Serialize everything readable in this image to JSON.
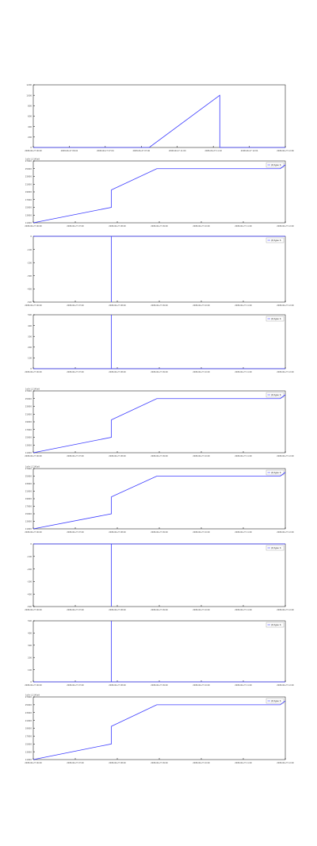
{
  "colors": {
    "series": "#3b3bff",
    "axis": "#000000",
    "tick": "#444444",
    "background": "#ffffff"
  },
  "chart_data": [
    {
      "type": "line",
      "title": "",
      "xlabel": "",
      "ylabel": "",
      "legend": "",
      "x_ticks": [
        "2008-06-27 06:00",
        "2008-06-27 06:02",
        "2008-06-27 07:04",
        "2008-06-27 07:06",
        "2008-06-27 11:00",
        "2008-06-27 11:02",
        "2008-06-27 12:04",
        "2008-06-27 12:06"
      ],
      "y_ticks": [
        "1200",
        "1000",
        "800",
        "600",
        "400",
        "200",
        "0"
      ],
      "ylim": [
        0,
        1200
      ],
      "series": [
        {
          "x": [
            0.0,
            0.46,
            0.74,
            0.74,
            1.0
          ],
          "y": [
            0,
            0,
            1000,
            0,
            0
          ]
        }
      ]
    },
    {
      "type": "line",
      "title": "",
      "xlabel": "",
      "ylabel": "",
      "legend": "(0) type: 6",
      "offset_label": "1e9+1.2145e9",
      "x_ticks": [
        "2008-06-27 06:00",
        "2008-06-27 07:00",
        "2008-06-27 08:00",
        "2008-06-27 09:00",
        "2008-06-27 10:00",
        "2008-06-27 11:00",
        "2008-06-27 12:00"
      ],
      "y_ticks": [
        "27000",
        "25000",
        "23000",
        "21000",
        "19000",
        "17000",
        "15000",
        "13000",
        "11000"
      ],
      "ylim": [
        11000,
        27000
      ],
      "series": [
        {
          "x": [
            0.0,
            0.31,
            0.31,
            0.49,
            0.98,
            1.0
          ],
          "y": [
            11000,
            15000,
            19500,
            25000,
            25000,
            26000
          ]
        }
      ]
    },
    {
      "type": "line",
      "title": "",
      "xlabel": "",
      "ylabel": "",
      "legend": "(0) type: 6",
      "x_ticks": [
        "2008-06-27 06:00",
        "2008-06-27 07:00",
        "2008-06-27 08:00",
        "2008-06-27 09:00",
        "2008-06-27 10:00",
        "2008-06-27 11:00",
        "2008-06-27 12:00"
      ],
      "y_ticks": [
        "0",
        "-100",
        "-200",
        "-300",
        "-400",
        "-500"
      ],
      "ylim": [
        -500,
        0
      ],
      "series": [
        {
          "x": [
            0.0,
            0.31,
            0.31,
            0.31,
            1.0
          ],
          "y": [
            0,
            0,
            -500,
            0,
            0
          ]
        }
      ]
    },
    {
      "type": "line",
      "title": "",
      "xlabel": "",
      "ylabel": "",
      "legend": "(0) type: 6",
      "x_ticks": [
        "2008-06-27 06:00",
        "2008-06-27 07:00",
        "2008-06-27 08:00",
        "2008-06-27 09:00",
        "2008-06-27 10:00",
        "2008-06-27 11:00",
        "2008-06-27 12:00"
      ],
      "y_ticks": [
        "500",
        "400",
        "300",
        "200",
        "100",
        "0"
      ],
      "ylim": [
        0,
        500
      ],
      "series": [
        {
          "x": [
            0.0,
            0.31,
            0.31,
            0.31,
            1.0
          ],
          "y": [
            0,
            0,
            500,
            0,
            0
          ]
        }
      ]
    },
    {
      "type": "line",
      "title": "",
      "xlabel": "",
      "ylabel": "",
      "legend": "(0) type: 6",
      "offset_label": "1e9+1.2145e9",
      "x_ticks": [
        "2008-06-27 06:00",
        "2008-06-27 07:00",
        "2008-06-27 08:00",
        "2008-06-27 09:00",
        "2008-06-27 10:00",
        "2008-06-27 11:00",
        "2008-06-27 12:00"
      ],
      "y_ticks": [
        "27000",
        "25000",
        "23000",
        "21000",
        "19000",
        "17000",
        "15000",
        "13000",
        "11000"
      ],
      "ylim": [
        11000,
        27000
      ],
      "series": [
        {
          "x": [
            0.0,
            0.31,
            0.31,
            0.49,
            0.98,
            1.0
          ],
          "y": [
            11000,
            15000,
            19500,
            25000,
            25000,
            26000
          ]
        }
      ]
    },
    {
      "type": "line",
      "title": "",
      "xlabel": "",
      "ylabel": "",
      "legend": "(0) type: 6",
      "offset_label": "1e9+1.2145e9",
      "x_ticks": [
        "2008-06-27 06:00",
        "2008-06-27 07:00",
        "2008-06-27 08:00",
        "2008-06-27 09:00",
        "2008-06-27 10:00",
        "2008-06-27 11:00",
        "2008-06-27 12:00"
      ],
      "y_ticks": [
        "27000",
        "25000",
        "23000",
        "21000",
        "19000",
        "17000",
        "15000",
        "13000",
        "11000"
      ],
      "ylim": [
        11000,
        27000
      ],
      "series": [
        {
          "x": [
            0.0,
            0.31,
            0.31,
            0.49,
            0.98,
            1.0
          ],
          "y": [
            11000,
            15000,
            19500,
            25000,
            25000,
            26000
          ]
        }
      ]
    },
    {
      "type": "line",
      "title": "",
      "xlabel": "",
      "ylabel": "",
      "legend": "(0) type: 6",
      "x_ticks": [
        "2008-06-27 06:00",
        "2008-06-27 07:00",
        "2008-06-27 08:00",
        "2008-06-27 09:00",
        "2008-06-27 10:00",
        "2008-06-27 11:00",
        "2008-06-27 12:00"
      ],
      "y_ticks": [
        "0",
        "-100",
        "-200",
        "-300",
        "-400",
        "-500"
      ],
      "ylim": [
        -500,
        0
      ],
      "series": [
        {
          "x": [
            0.0,
            0.31,
            0.31,
            0.31,
            1.0
          ],
          "y": [
            0,
            0,
            -500,
            0,
            0
          ]
        }
      ]
    },
    {
      "type": "line",
      "title": "",
      "xlabel": "",
      "ylabel": "",
      "legend": "(0) type: 6",
      "x_ticks": [
        "2008-06-27 06:00",
        "2008-06-27 07:00",
        "2008-06-27 08:00",
        "2008-06-27 09:00",
        "2008-06-27 10:00",
        "2008-06-27 11:00",
        "2008-06-27 12:00"
      ],
      "y_ticks": [
        "500",
        "400",
        "300",
        "200",
        "100",
        "0"
      ],
      "ylim": [
        0,
        500
      ],
      "series": [
        {
          "x": [
            0.0,
            0.31,
            0.31,
            0.31,
            1.0
          ],
          "y": [
            0,
            0,
            500,
            0,
            0
          ]
        }
      ]
    },
    {
      "type": "line",
      "title": "",
      "xlabel": "",
      "ylabel": "",
      "legend": "(0) type: 6",
      "offset_label": "1e9+1.2145e9",
      "x_ticks": [
        "2008-06-27 06:00",
        "2008-06-27 07:00",
        "2008-06-27 08:00",
        "2008-06-27 09:00",
        "2008-06-27 10:00",
        "2008-06-27 11:00",
        "2008-06-27 12:00"
      ],
      "y_ticks": [
        "27000",
        "25000",
        "23000",
        "21000",
        "19000",
        "17000",
        "15000",
        "13000",
        "11000"
      ],
      "ylim": [
        11000,
        27000
      ],
      "series": [
        {
          "x": [
            0.0,
            0.31,
            0.31,
            0.49,
            0.98,
            1.0
          ],
          "y": [
            11000,
            15000,
            19500,
            25000,
            25000,
            26000
          ]
        }
      ]
    }
  ]
}
